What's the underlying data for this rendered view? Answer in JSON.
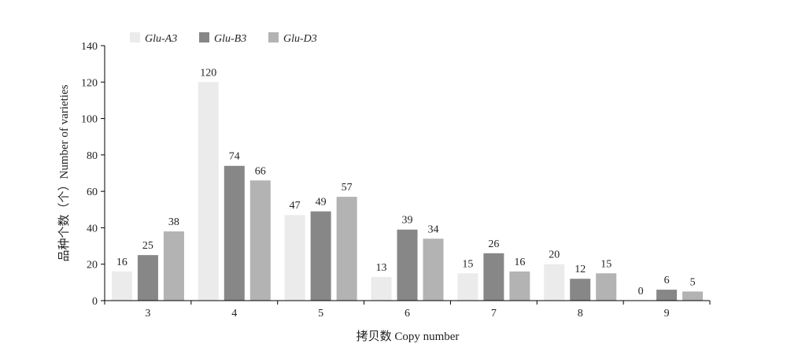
{
  "chart_data": {
    "type": "bar",
    "categories": [
      "3",
      "4",
      "5",
      "6",
      "7",
      "8",
      "9"
    ],
    "series": [
      {
        "name": "Glu-A3",
        "values": [
          16,
          120,
          47,
          13,
          15,
          20,
          0
        ],
        "color": "#ebebeb"
      },
      {
        "name": "Glu-B3",
        "values": [
          25,
          74,
          49,
          39,
          26,
          12,
          6
        ],
        "color": "#878787"
      },
      {
        "name": "Glu-D3",
        "values": [
          38,
          66,
          57,
          34,
          16,
          15,
          5
        ],
        "color": "#b3b3b3"
      }
    ],
    "xlabel": "拷贝数 Copy number",
    "ylabel": "品种个数（个）Number of varieties",
    "ylim": [
      0,
      140
    ],
    "yticks": [
      0,
      20,
      40,
      60,
      80,
      100,
      120,
      140
    ],
    "legend_position": "top-left",
    "grid": false
  }
}
